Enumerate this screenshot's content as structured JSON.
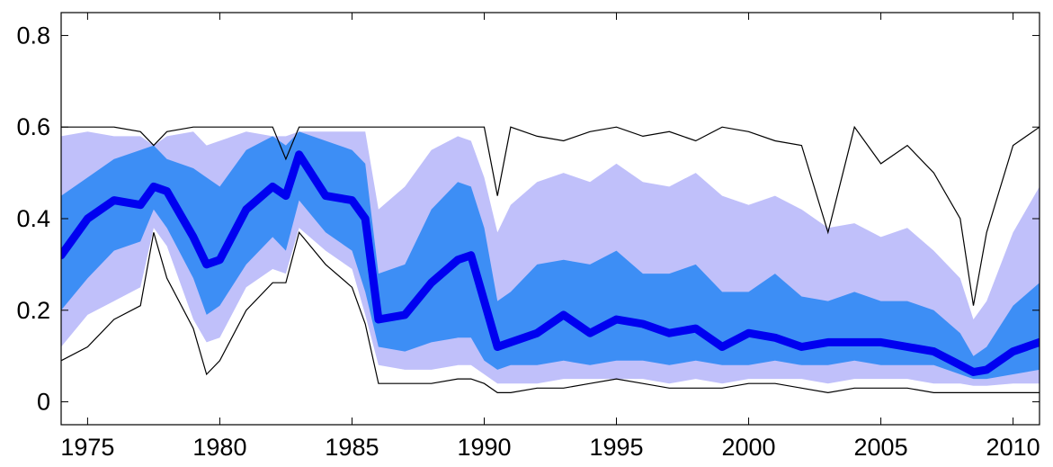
{
  "chart_data": {
    "type": "area",
    "title": "",
    "xlabel": "",
    "ylabel": "",
    "xlim": [
      1974.0,
      2011.0
    ],
    "ylim": [
      -0.05,
      0.85
    ],
    "x_ticks": [
      1975,
      1980,
      1985,
      1990,
      1995,
      2000,
      2005,
      2010
    ],
    "y_ticks": [
      0,
      0.2,
      0.4,
      0.6,
      0.8
    ],
    "x_tick_labels": [
      "1975",
      "1980",
      "1985",
      "1990",
      "1995",
      "2000",
      "2005",
      "2010"
    ],
    "y_tick_labels": [
      "0",
      "0.2",
      "0.4",
      "0.6",
      "0.8"
    ],
    "grid": false,
    "colors": {
      "outer_band": "#c0c0fa",
      "inner_band": "#3d8ef5",
      "median": "#0000f0",
      "extreme_lines": "#000000"
    },
    "x": [
      1974.0,
      1975.0,
      1976.0,
      1977.0,
      1977.5,
      1978.0,
      1979.0,
      1979.5,
      1980.0,
      1981.0,
      1982.0,
      1982.5,
      1983.0,
      1984.0,
      1985.0,
      1985.5,
      1986.0,
      1987.0,
      1988.0,
      1989.0,
      1989.5,
      1990.0,
      1990.5,
      1991.0,
      1992.0,
      1993.0,
      1994.0,
      1995.0,
      1996.0,
      1997.0,
      1998.0,
      1999.0,
      2000.0,
      2001.0,
      2002.0,
      2003.0,
      2004.0,
      2005.0,
      2006.0,
      2007.0,
      2008.0,
      2008.5,
      2009.0,
      2010.0,
      2011.0
    ],
    "series": [
      {
        "role": "max",
        "values": [
          0.6,
          0.6,
          0.6,
          0.59,
          0.56,
          0.59,
          0.6,
          0.6,
          0.6,
          0.6,
          0.6,
          0.53,
          0.6,
          0.6,
          0.6,
          0.6,
          0.6,
          0.6,
          0.6,
          0.6,
          0.6,
          0.6,
          0.45,
          0.6,
          0.58,
          0.57,
          0.59,
          0.6,
          0.58,
          0.59,
          0.57,
          0.6,
          0.59,
          0.57,
          0.56,
          0.37,
          0.6,
          0.52,
          0.56,
          0.5,
          0.4,
          0.21,
          0.37,
          0.56,
          0.6
        ]
      },
      {
        "role": "p90",
        "values": [
          0.58,
          0.59,
          0.58,
          0.58,
          0.56,
          0.58,
          0.59,
          0.56,
          0.57,
          0.59,
          0.58,
          0.58,
          0.59,
          0.59,
          0.59,
          0.59,
          0.42,
          0.47,
          0.55,
          0.58,
          0.57,
          0.49,
          0.37,
          0.43,
          0.48,
          0.5,
          0.48,
          0.52,
          0.48,
          0.47,
          0.5,
          0.45,
          0.43,
          0.45,
          0.42,
          0.38,
          0.39,
          0.36,
          0.38,
          0.33,
          0.27,
          0.18,
          0.22,
          0.37,
          0.47
        ]
      },
      {
        "role": "p75",
        "values": [
          0.45,
          0.49,
          0.53,
          0.55,
          0.56,
          0.53,
          0.51,
          0.49,
          0.47,
          0.55,
          0.58,
          0.56,
          0.59,
          0.57,
          0.55,
          0.52,
          0.28,
          0.3,
          0.42,
          0.48,
          0.47,
          0.38,
          0.22,
          0.24,
          0.3,
          0.31,
          0.3,
          0.33,
          0.28,
          0.28,
          0.3,
          0.24,
          0.24,
          0.28,
          0.23,
          0.22,
          0.24,
          0.22,
          0.22,
          0.2,
          0.15,
          0.1,
          0.12,
          0.21,
          0.26
        ]
      },
      {
        "role": "median",
        "values": [
          0.32,
          0.4,
          0.44,
          0.43,
          0.47,
          0.46,
          0.36,
          0.3,
          0.31,
          0.42,
          0.47,
          0.45,
          0.54,
          0.45,
          0.44,
          0.4,
          0.18,
          0.19,
          0.26,
          0.31,
          0.32,
          0.22,
          0.12,
          0.13,
          0.15,
          0.19,
          0.15,
          0.18,
          0.17,
          0.15,
          0.16,
          0.12,
          0.15,
          0.14,
          0.12,
          0.13,
          0.13,
          0.13,
          0.12,
          0.11,
          0.08,
          0.065,
          0.07,
          0.11,
          0.13
        ]
      },
      {
        "role": "p25",
        "values": [
          0.2,
          0.27,
          0.33,
          0.35,
          0.42,
          0.38,
          0.27,
          0.19,
          0.21,
          0.3,
          0.36,
          0.33,
          0.44,
          0.37,
          0.33,
          0.24,
          0.12,
          0.11,
          0.13,
          0.14,
          0.14,
          0.09,
          0.07,
          0.08,
          0.08,
          0.09,
          0.08,
          0.09,
          0.09,
          0.08,
          0.09,
          0.08,
          0.08,
          0.09,
          0.08,
          0.08,
          0.09,
          0.08,
          0.08,
          0.08,
          0.06,
          0.05,
          0.05,
          0.06,
          0.07
        ]
      },
      {
        "role": "p10",
        "values": [
          0.12,
          0.19,
          0.22,
          0.25,
          0.38,
          0.34,
          0.18,
          0.13,
          0.14,
          0.25,
          0.29,
          0.28,
          0.38,
          0.33,
          0.29,
          0.19,
          0.08,
          0.07,
          0.07,
          0.08,
          0.08,
          0.06,
          0.04,
          0.04,
          0.04,
          0.05,
          0.05,
          0.05,
          0.05,
          0.04,
          0.05,
          0.04,
          0.05,
          0.05,
          0.05,
          0.04,
          0.05,
          0.05,
          0.05,
          0.04,
          0.04,
          0.035,
          0.035,
          0.04,
          0.04
        ]
      },
      {
        "role": "min",
        "values": [
          0.09,
          0.12,
          0.18,
          0.21,
          0.37,
          0.27,
          0.16,
          0.06,
          0.09,
          0.2,
          0.26,
          0.26,
          0.37,
          0.3,
          0.25,
          0.17,
          0.04,
          0.04,
          0.04,
          0.05,
          0.05,
          0.04,
          0.02,
          0.02,
          0.03,
          0.03,
          0.04,
          0.05,
          0.04,
          0.03,
          0.03,
          0.03,
          0.04,
          0.04,
          0.03,
          0.02,
          0.03,
          0.03,
          0.03,
          0.02,
          0.02,
          0.02,
          0.02,
          0.02,
          0.02
        ]
      }
    ]
  }
}
